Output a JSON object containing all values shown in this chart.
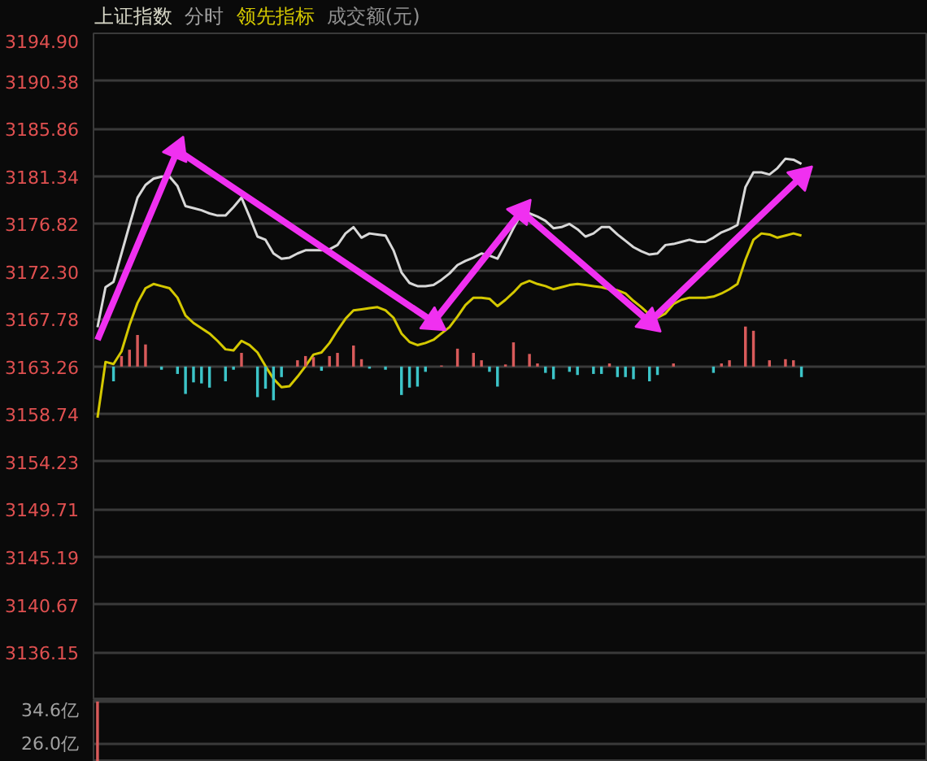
{
  "chart_data": [
    {
      "type": "line",
      "title": "上证指数",
      "subtitle": "分时",
      "annotations": [
        "成交额(元)"
      ],
      "categories": [
        null,
        null,
        null,
        null,
        null,
        null,
        null,
        null,
        null,
        null,
        null,
        null,
        null,
        null,
        null,
        null,
        null,
        null,
        null,
        null,
        null,
        null,
        null,
        null,
        null,
        null,
        null,
        null,
        null,
        null,
        null,
        null,
        null,
        null,
        null,
        null,
        null,
        null,
        null,
        null,
        null,
        null,
        null,
        null,
        null,
        null,
        null,
        null,
        null,
        null,
        null,
        null,
        null,
        null,
        null,
        null,
        null,
        null,
        null,
        null,
        null,
        null,
        null,
        null,
        null,
        null,
        null,
        null,
        null,
        null,
        null,
        null,
        null,
        null,
        null,
        null,
        null,
        null,
        null,
        null,
        null,
        null,
        null,
        null,
        null,
        null,
        null,
        null,
        null
      ],
      "ylim": [
        3131.6,
        3194.9
      ],
      "yticks": [
        {
          "value": 3194.9,
          "label": "3194.90"
        },
        {
          "value": 3190.38,
          "label": "3190.38"
        },
        {
          "value": 3185.86,
          "label": "3185.86"
        },
        {
          "value": 3181.34,
          "label": "3181.34"
        },
        {
          "value": 3176.82,
          "label": "3176.82"
        },
        {
          "value": 3172.3,
          "label": "3172.30"
        },
        {
          "value": 3167.78,
          "label": "3167.78"
        },
        {
          "value": 3163.26,
          "label": "3163.26"
        },
        {
          "value": 3158.74,
          "label": "3158.74"
        },
        {
          "value": 3154.23,
          "label": "3154.23"
        },
        {
          "value": 3149.71,
          "label": "3149.71"
        },
        {
          "value": 3145.19,
          "label": "3145.19"
        },
        {
          "value": 3140.67,
          "label": "3140.67"
        },
        {
          "value": 3136.15,
          "label": "3136.15"
        }
      ],
      "grid": "y",
      "tick_labels": "y",
      "series": [
        {
          "type": "line",
          "color": "#d8d8d8",
          "values": [
            3167.0,
            3170.8,
            3171.3,
            3174.0,
            3176.7,
            3179.3,
            3180.5,
            3181.1,
            3181.3,
            3181.3,
            3180.4,
            3178.5,
            3178.3,
            3178.1,
            3177.8,
            3177.6,
            3177.6,
            3178.4,
            3179.3,
            3177.5,
            3175.6,
            3175.3,
            3174.0,
            3173.5,
            3173.6,
            3174.0,
            3174.3,
            3174.3,
            3174.3,
            3174.4,
            3174.8,
            3175.9,
            3176.5,
            3175.5,
            3175.9,
            3175.8,
            3175.7,
            3174.3,
            3172.2,
            3171.2,
            3170.9,
            3170.9,
            3171.0,
            3171.5,
            3172.1,
            3172.9,
            3173.3,
            3173.6,
            3174.0,
            3173.8,
            3173.5,
            3174.9,
            3176.4,
            3177.8,
            3177.8,
            3177.5,
            3177.1,
            3176.4,
            3176.5,
            3176.8,
            3176.3,
            3175.6,
            3175.9,
            3176.5,
            3176.5,
            3175.8,
            3175.2,
            3174.6,
            3174.2,
            3173.9,
            3174.0,
            3174.8,
            3174.9,
            3175.1,
            3175.3,
            3175.1,
            3175.1,
            3175.5,
            3176.0,
            3176.3,
            3176.7,
            3180.3,
            3181.7,
            3181.7,
            3181.5,
            3182.1,
            3183.0,
            3182.9,
            3182.5
          ]
        },
        {
          "type": "line",
          "name": "领先指标",
          "color": "#d4c800",
          "values": [
            3158.4,
            3163.7,
            3163.5,
            3164.7,
            3167.2,
            3169.3,
            3170.7,
            3171.1,
            3170.9,
            3170.7,
            3169.8,
            3168.1,
            3167.4,
            3166.9,
            3166.4,
            3165.7,
            3164.9,
            3164.8,
            3165.7,
            3165.3,
            3164.6,
            3163.3,
            3162.1,
            3161.3,
            3161.4,
            3162.3,
            3163.3,
            3164.4,
            3164.6,
            3165.5,
            3166.7,
            3167.8,
            3168.6,
            3168.7,
            3168.8,
            3168.9,
            3168.6,
            3167.9,
            3166.4,
            3165.6,
            3165.3,
            3165.5,
            3165.8,
            3166.4,
            3167.0,
            3168.0,
            3169.1,
            3169.8,
            3169.8,
            3169.7,
            3169.0,
            3169.6,
            3170.3,
            3171.1,
            3171.4,
            3171.1,
            3170.9,
            3170.6,
            3170.8,
            3171.0,
            3171.1,
            3171.0,
            3170.9,
            3170.8,
            3170.6,
            3170.5,
            3170.2,
            3169.5,
            3168.9,
            3168.2,
            3167.9,
            3168.3,
            3169.2,
            3169.6,
            3169.8,
            3169.8,
            3169.8,
            3169.9,
            3170.2,
            3170.6,
            3171.1,
            3173.4,
            3175.3,
            3175.9,
            3175.8,
            3175.5,
            3175.7,
            3175.9,
            3175.7
          ]
        },
        {
          "type": "bar",
          "values": [
            null,
            null,
            -1.4,
            1.0,
            1.6,
            3.0,
            2.1,
            null,
            -0.3,
            null,
            -0.7,
            -2.6,
            -1.5,
            -1.6,
            -2.0,
            null,
            -1.4,
            -0.3,
            1.3,
            null,
            -2.9,
            -2.1,
            -3.2,
            -1.0,
            null,
            0.6,
            1.0,
            0.9,
            -0.4,
            1.0,
            1.3,
            null,
            2.0,
            0.7,
            -0.2,
            null,
            -0.3,
            null,
            -2.7,
            -2.0,
            -1.9,
            -0.5,
            null,
            0.1,
            null,
            1.7,
            null,
            1.3,
            0.6,
            -0.5,
            -1.9,
            0.2,
            2.3,
            null,
            1.2,
            0.3,
            -0.6,
            -1.2,
            null,
            -0.5,
            -0.8,
            null,
            -0.7,
            -0.7,
            0.3,
            -1.0,
            -1.0,
            -1.2,
            null,
            -1.4,
            -0.8,
            null,
            0.3,
            null,
            null,
            null,
            null,
            -0.6,
            0.3,
            0.6,
            null,
            3.8,
            3.4,
            null,
            0.6,
            null,
            0.7,
            0.6,
            -1.0
          ],
          "base": [
            null,
            null,
            3163.26,
            3163.26,
            3163.26,
            3163.26,
            3163.26,
            null,
            3163.26,
            null,
            3163.26,
            3163.26,
            3163.26,
            3163.26,
            3163.26,
            null,
            3163.26,
            3163.26,
            3163.26,
            null,
            3163.26,
            3163.26,
            3163.26,
            3163.26,
            null,
            3163.26,
            3163.26,
            3163.26,
            3163.26,
            3163.26,
            3163.26,
            null,
            3163.26,
            3163.26,
            3163.26,
            null,
            3163.26,
            null,
            3163.26,
            3163.26,
            3163.26,
            3163.26,
            null,
            3163.26,
            null,
            3163.26,
            null,
            3163.26,
            3163.26,
            3163.26,
            3163.26,
            3163.26,
            3163.26,
            null,
            3163.26,
            3163.26,
            3163.26,
            3163.26,
            null,
            3163.26,
            3163.26,
            null,
            3163.26,
            3163.26,
            3163.26,
            3163.26,
            3163.26,
            3163.26,
            null,
            3163.26,
            3163.26,
            null,
            3163.26,
            null,
            null,
            null,
            null,
            3163.26,
            3163.26,
            3163.26,
            null,
            3163.26,
            3163.26,
            null,
            3163.26,
            null,
            3163.26,
            3163.26,
            3163.26
          ],
          "colors": [
            null,
            null,
            "#3cc4c8",
            "#d85a5a",
            "#d85a5a",
            "#d85a5a",
            "#d85a5a",
            null,
            "#3cc4c8",
            null,
            "#3cc4c8",
            "#3cc4c8",
            "#3cc4c8",
            "#3cc4c8",
            "#3cc4c8",
            null,
            "#3cc4c8",
            "#3cc4c8",
            "#d85a5a",
            null,
            "#3cc4c8",
            "#3cc4c8",
            "#3cc4c8",
            "#3cc4c8",
            null,
            "#d85a5a",
            "#d85a5a",
            "#d85a5a",
            "#3cc4c8",
            "#d85a5a",
            "#d85a5a",
            null,
            "#d85a5a",
            "#d85a5a",
            "#3cc4c8",
            null,
            "#3cc4c8",
            null,
            "#3cc4c8",
            "#3cc4c8",
            "#3cc4c8",
            "#3cc4c8",
            null,
            "#d85a5a",
            null,
            "#d85a5a",
            null,
            "#d85a5a",
            "#d85a5a",
            "#3cc4c8",
            "#3cc4c8",
            "#d85a5a",
            "#d85a5a",
            null,
            "#d85a5a",
            "#d85a5a",
            "#3cc4c8",
            "#3cc4c8",
            null,
            "#3cc4c8",
            "#3cc4c8",
            null,
            "#3cc4c8",
            "#3cc4c8",
            "#d85a5a",
            "#3cc4c8",
            "#3cc4c8",
            "#3cc4c8",
            null,
            "#3cc4c8",
            "#3cc4c8",
            null,
            "#d85a5a",
            null,
            null,
            null,
            null,
            "#3cc4c8",
            "#d85a5a",
            "#d85a5a",
            null,
            "#d85a5a",
            "#d85a5a",
            null,
            "#d85a5a",
            null,
            "#d85a5a",
            "#d85a5a",
            "#3cc4c8"
          ]
        },
        {
          "type": "line",
          "color": "#f030f0",
          "marker": "triangle",
          "values": [
            3165.8,
            null,
            null,
            null,
            null,
            null,
            null,
            null,
            null,
            null,
            3183.8,
            null,
            null,
            null,
            null,
            null,
            null,
            null,
            null,
            null,
            null,
            null,
            null,
            null,
            null,
            null,
            null,
            null,
            null,
            null,
            null,
            null,
            null,
            null,
            null,
            null,
            null,
            null,
            null,
            null,
            null,
            null,
            3167.5,
            null,
            null,
            null,
            null,
            null,
            null,
            null,
            null,
            null,
            null,
            3178.0,
            null,
            null,
            null,
            null,
            null,
            null,
            null,
            null,
            null,
            null,
            null,
            null,
            null,
            null,
            null,
            3167.5,
            null,
            null,
            null,
            null,
            null,
            null,
            null,
            null,
            null,
            null,
            null,
            null,
            null,
            null,
            null,
            null,
            null,
            null,
            3181.3
          ]
        }
      ]
    },
    {
      "type": "bar",
      "categories": [
        null,
        null,
        null,
        null,
        null,
        null,
        null,
        null,
        null,
        null,
        null,
        null,
        null,
        null,
        null,
        null,
        null,
        null,
        null,
        null,
        null,
        null,
        null,
        null,
        null,
        null,
        null,
        null,
        null,
        null,
        null,
        null,
        null,
        null,
        null,
        null,
        null,
        null,
        null,
        null,
        null,
        null,
        null,
        null,
        null,
        null,
        null,
        null,
        null,
        null,
        null,
        null,
        null,
        null,
        null,
        null,
        null,
        null,
        null,
        null,
        null,
        null,
        null,
        null,
        null,
        null,
        null,
        null,
        null,
        null,
        null,
        null,
        null,
        null,
        null,
        null,
        null,
        null,
        null,
        null,
        null,
        null,
        null,
        null,
        null,
        null,
        null,
        null,
        null
      ],
      "ylim": [
        22.4,
        34.9
      ],
      "yticks": [
        {
          "value": 34.6,
          "label": "34.6亿"
        },
        {
          "value": 26.0,
          "label": "26.0亿"
        }
      ],
      "grid": "y",
      "tick_labels": "y",
      "series": [
        {
          "color": "#d85a5a",
          "values": [
            34.6,
            null,
            null,
            null,
            null,
            null,
            null,
            null,
            null,
            null,
            null,
            null,
            null,
            null,
            null,
            null,
            null,
            null,
            null,
            null,
            null,
            null,
            null,
            null,
            null,
            null,
            null,
            null,
            null,
            null,
            null,
            null,
            null,
            null,
            null,
            null,
            null,
            null,
            null,
            null,
            null,
            null,
            null,
            null,
            null,
            null,
            null,
            null,
            null,
            null,
            null,
            null,
            null,
            null,
            null,
            null,
            null,
            null,
            null,
            null,
            null,
            null,
            null,
            null,
            null,
            null,
            null,
            null,
            null,
            null,
            null,
            null,
            null,
            null,
            null,
            null,
            null,
            null,
            null,
            null,
            null,
            null,
            null,
            null,
            null,
            null,
            null,
            null,
            null
          ]
        }
      ]
    }
  ]
}
